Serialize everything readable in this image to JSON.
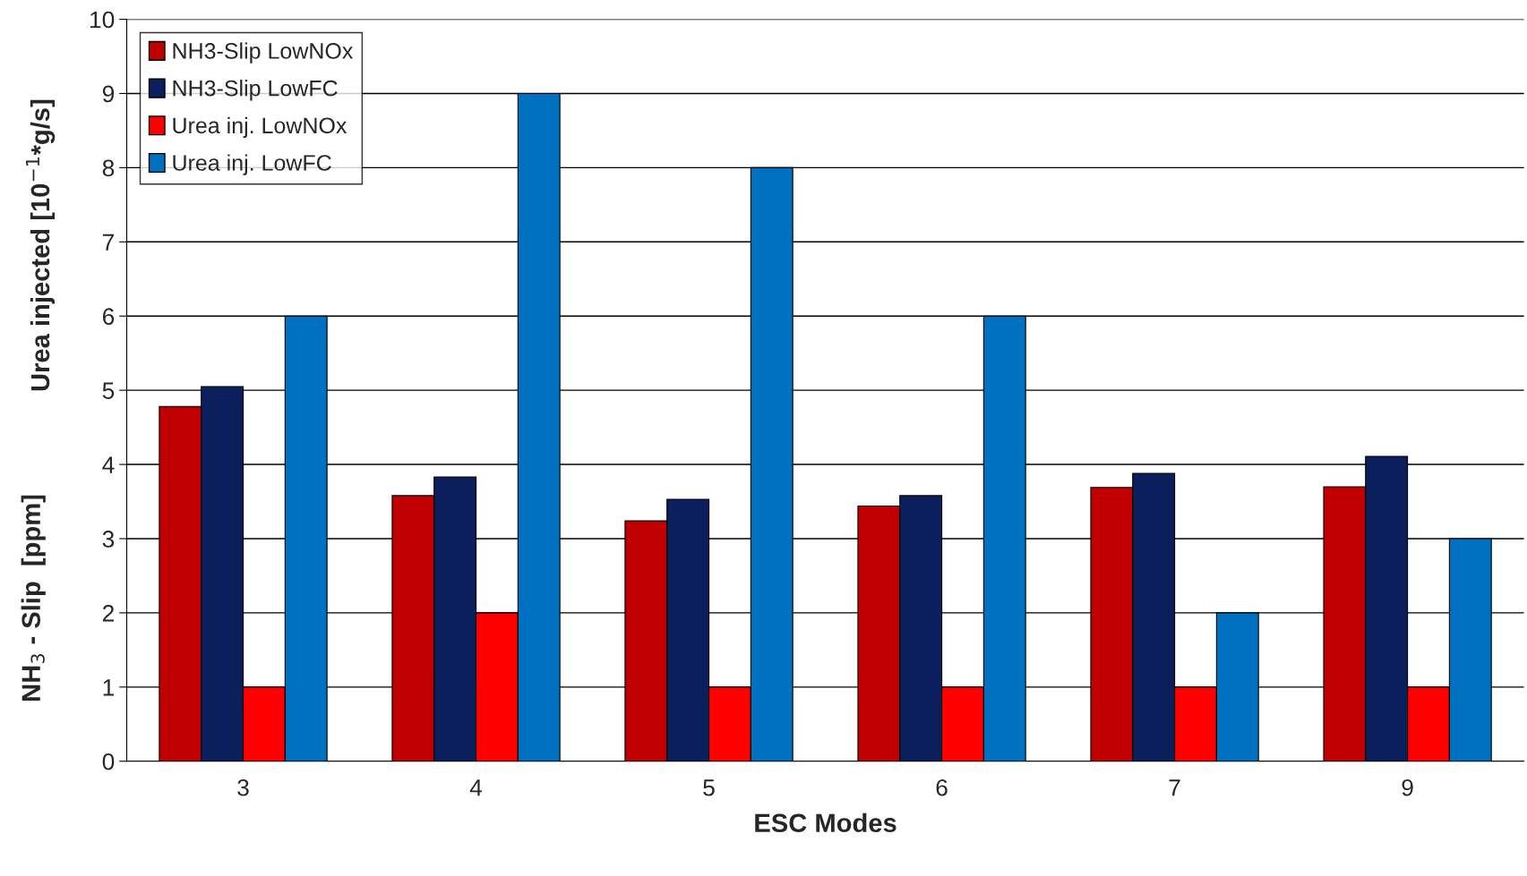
{
  "chart_data": {
    "type": "bar",
    "xlabel": "ESC Modes",
    "ylabel": "NH$_{3}$ - Slip  [ppm]",
    "annotations": [
      "Urea injected [10$^{−1}$*g/s]"
    ],
    "categories": [
      "3",
      "4",
      "5",
      "6",
      "7",
      "9"
    ],
    "series": [
      {
        "name": "NH3-Slip LowNOx",
        "color": "#c00000",
        "values": [
          4.78,
          3.58,
          3.24,
          3.44,
          3.69,
          3.7
        ]
      },
      {
        "name": "NH3-Slip LowFC",
        "color": "#0a1f5c",
        "values": [
          5.05,
          3.83,
          3.53,
          3.58,
          3.88,
          4.11
        ]
      },
      {
        "name": "Urea inj. LowNOx",
        "color": "#ff0000",
        "values": [
          1,
          2,
          1,
          1,
          1,
          1
        ]
      },
      {
        "name": "Urea inj. LowFC",
        "color": "#0070c0",
        "values": [
          6,
          9,
          8,
          6,
          2,
          3
        ]
      }
    ],
    "ylim": [
      0,
      10
    ],
    "yticks": [
      0,
      1,
      2,
      3,
      4,
      5,
      6,
      7,
      8,
      9,
      10
    ],
    "grid": "y",
    "legend": "top left"
  }
}
